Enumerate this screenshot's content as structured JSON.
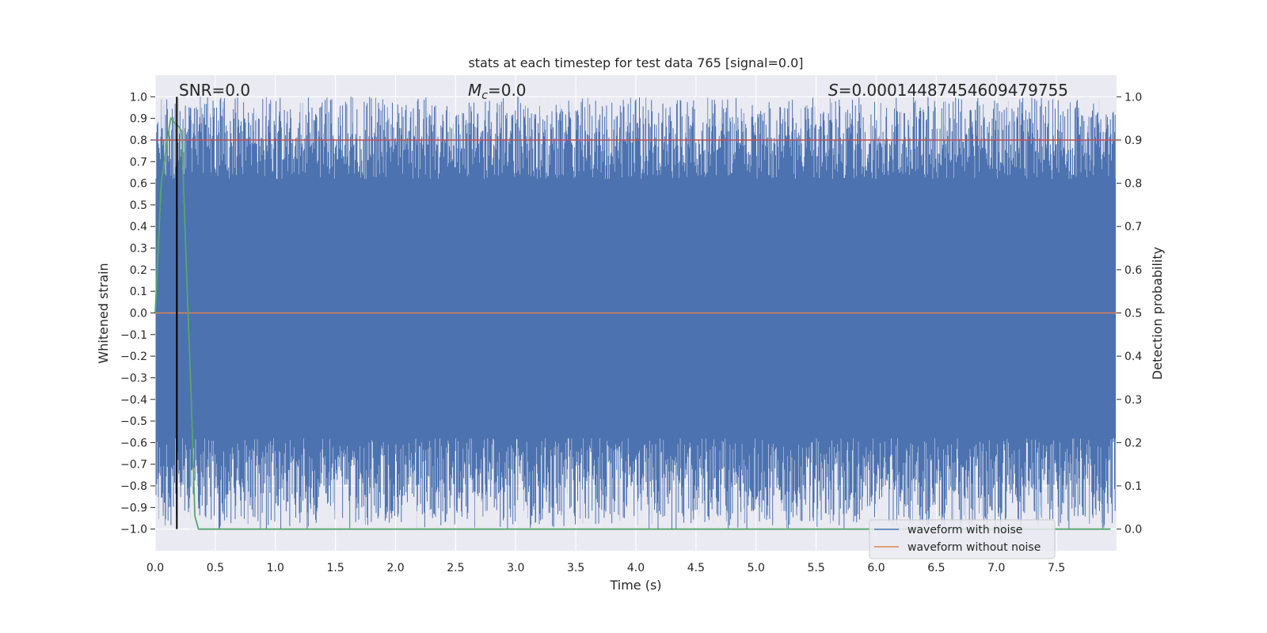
{
  "chart_data": {
    "type": "line",
    "title": "stats at each timestep for test data 765 [signal=0.0]",
    "xlabel": "Time (s)",
    "ylabel_left": "Whitened strain",
    "ylabel_right": "Detection probability",
    "xlim": [
      0.0,
      8.0
    ],
    "ylim_left": [
      -1.1,
      1.1
    ],
    "ylim_right": [
      -0.05,
      1.05
    ],
    "x_ticks": [
      "0.0",
      "0.5",
      "1.0",
      "1.5",
      "2.0",
      "2.5",
      "3.0",
      "3.5",
      "4.0",
      "4.5",
      "5.0",
      "5.5",
      "6.0",
      "6.5",
      "7.0",
      "7.5"
    ],
    "y_ticks_left": [
      "1.0",
      "0.9",
      "0.8",
      "0.7",
      "0.6",
      "0.5",
      "0.4",
      "0.3",
      "0.2",
      "0.1",
      "0.0",
      "−0.1",
      "−0.2",
      "−0.3",
      "−0.4",
      "−0.5",
      "−0.6",
      "−0.7",
      "−0.8",
      "−0.9",
      "−1.0"
    ],
    "y_ticks_right": [
      "1.0",
      "0.9",
      "0.8",
      "0.7",
      "0.6",
      "0.5",
      "0.4",
      "0.3",
      "0.2",
      "0.1",
      "0.0"
    ],
    "grid": true,
    "annotations": {
      "snr": "SNR=0.0",
      "mc_symbol": "M",
      "mc_sub": "c",
      "mc_value": "=0.0",
      "s_symbol": "S",
      "s_value": "=0.00014487454609479755"
    },
    "vertical_marker_x": 0.18,
    "threshold_probability": 0.9,
    "series": [
      {
        "name": "waveform with noise",
        "color": "#4c72b0",
        "description_range": [
          -1.0,
          1.0
        ]
      },
      {
        "name": "waveform without noise",
        "color": "#dd8452",
        "x": [
          0.0,
          8.0
        ],
        "values": [
          0.0,
          0.0
        ]
      },
      {
        "color": "#55a868",
        "x": [
          0.0,
          0.05,
          0.1,
          0.13,
          0.16,
          0.2,
          0.22,
          0.26,
          0.3,
          0.33,
          0.36,
          0.5,
          1.0,
          2.0,
          3.0,
          4.0,
          5.0,
          6.0,
          7.0,
          7.95
        ],
        "values": [
          0.5,
          0.8,
          0.9,
          0.95,
          0.94,
          0.93,
          0.92,
          0.6,
          0.3,
          0.03,
          0.0,
          0.0,
          0.0,
          0.0,
          0.0,
          0.0,
          0.0,
          0.0,
          0.0,
          0.0
        ]
      }
    ],
    "legend_position": "lower-right",
    "colors": {
      "plot_bg": "#eaeaf2",
      "grid": "#ffffff",
      "threshold": "#c44e52",
      "marker": "#000000"
    }
  }
}
